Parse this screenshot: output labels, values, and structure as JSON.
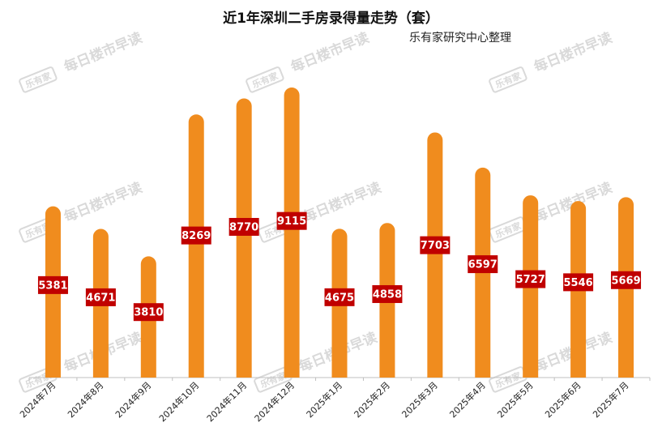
{
  "chart_data": {
    "type": "bar",
    "title": "近1年深圳二手房录得量走势（套）",
    "subtitle": "乐有家研究中心整理",
    "categories": [
      "2024年7月",
      "2024年8月",
      "2024年9月",
      "2024年10月",
      "2024年11月",
      "2024年12月",
      "2025年1月",
      "2025年2月",
      "2025年3月",
      "2025年4月",
      "2025年5月",
      "2025年6月",
      "2025年7月"
    ],
    "values": [
      5381,
      4671,
      3810,
      8269,
      8770,
      9115,
      4675,
      4858,
      7703,
      6597,
      5727,
      5546,
      5669
    ],
    "xlabel": "",
    "ylabel": "",
    "ylim": [
      0,
      9115
    ],
    "grid": false,
    "legend": "none",
    "colors": {
      "bar": "#f08c1e",
      "label_bg": "#c00000",
      "label_text": "#ffffff",
      "axis": "#bfbfbf"
    }
  },
  "watermark": {
    "text": "每日楼市早读",
    "logo": "乐有家"
  }
}
